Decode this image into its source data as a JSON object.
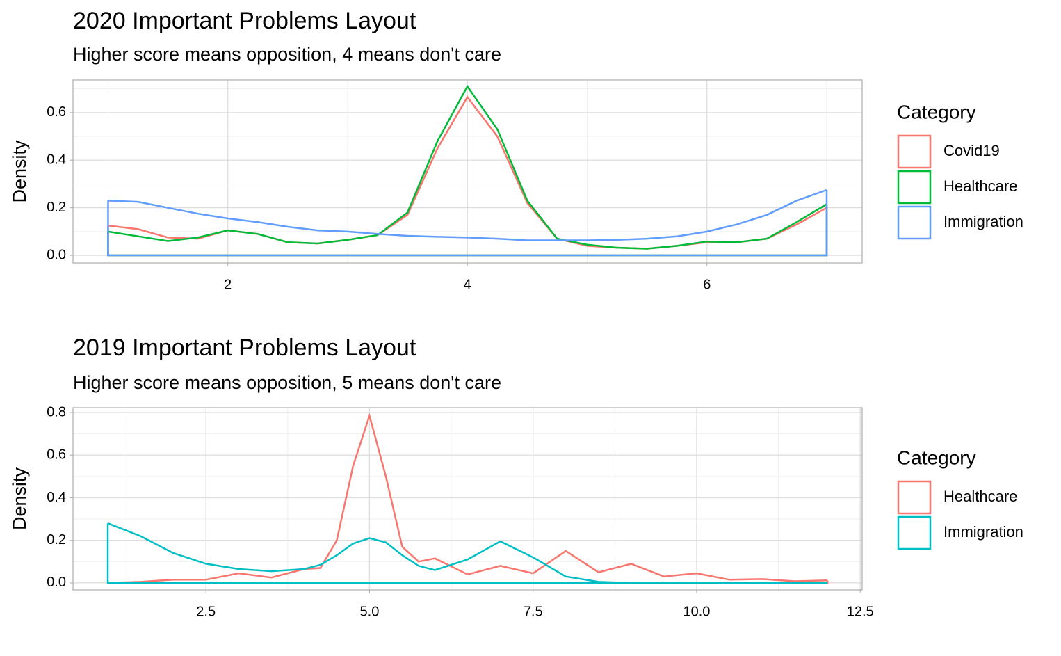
{
  "chart_data": [
    {
      "type": "density",
      "title": "2020 Important Problems Layout",
      "subtitle": "Higher score means opposition, 4 means don't care",
      "y_label": "Density",
      "legend_title": "Category",
      "x": [
        1,
        1.25,
        1.5,
        1.75,
        2,
        2.25,
        2.5,
        2.75,
        3,
        3.25,
        3.5,
        3.75,
        4,
        4.25,
        4.5,
        4.75,
        5,
        5.25,
        5.5,
        5.75,
        6,
        6.25,
        6.5,
        6.75,
        7
      ],
      "series": [
        {
          "name": "Covid19",
          "color": "#F8766D",
          "values": [
            0.125,
            0.11,
            0.075,
            0.07,
            0.105,
            0.09,
            0.055,
            0.05,
            0.065,
            0.085,
            0.17,
            0.45,
            0.665,
            0.5,
            0.22,
            0.07,
            0.04,
            0.032,
            0.028,
            0.04,
            0.055,
            0.055,
            0.07,
            0.13,
            0.2
          ]
        },
        {
          "name": "Healthcare",
          "color": "#00BA38",
          "values": [
            0.1,
            0.08,
            0.06,
            0.075,
            0.105,
            0.09,
            0.055,
            0.05,
            0.065,
            0.085,
            0.18,
            0.48,
            0.71,
            0.53,
            0.23,
            0.07,
            0.045,
            0.032,
            0.028,
            0.04,
            0.058,
            0.055,
            0.07,
            0.14,
            0.215
          ]
        },
        {
          "name": "Immigration",
          "color": "#619CFF",
          "values": [
            0.23,
            0.225,
            0.2,
            0.175,
            0.155,
            0.14,
            0.12,
            0.105,
            0.1,
            0.09,
            0.082,
            0.078,
            0.075,
            0.07,
            0.063,
            0.063,
            0.063,
            0.065,
            0.07,
            0.08,
            0.1,
            0.13,
            0.17,
            0.23,
            0.275
          ]
        }
      ],
      "xlim": [
        0.707,
        7.296
      ],
      "ylim": [
        -0.032,
        0.737
      ],
      "xticks": [
        2,
        4,
        6
      ],
      "yticks": [
        {
          "value": 0,
          "label": "0.0"
        },
        0.2,
        0.4,
        0.6
      ],
      "grid": true
    },
    {
      "type": "density",
      "title": "2019 Important Problems Layout",
      "subtitle": "Higher score means opposition, 5 means don't care",
      "y_label": "Density",
      "legend_title": "Category",
      "x": [
        1,
        1.5,
        2,
        2.5,
        3,
        3.5,
        4,
        4.25,
        4.5,
        4.75,
        5,
        5.25,
        5.5,
        5.75,
        6,
        6.5,
        7,
        7.5,
        8,
        8.5,
        9,
        9.5,
        10,
        10.5,
        11,
        11.5,
        12
      ],
      "series": [
        {
          "name": "Healthcare",
          "color": "#F8766D",
          "values": [
            0,
            0.005,
            0.015,
            0.015,
            0.045,
            0.025,
            0.065,
            0.07,
            0.2,
            0.55,
            0.785,
            0.5,
            0.17,
            0.1,
            0.115,
            0.04,
            0.08,
            0.045,
            0.15,
            0.05,
            0.09,
            0.03,
            0.045,
            0.015,
            0.018,
            0.008,
            0.012
          ]
        },
        {
          "name": "Immigration",
          "color": "#00BFC4",
          "values": [
            0.28,
            0.22,
            0.14,
            0.09,
            0.065,
            0.055,
            0.065,
            0.085,
            0.13,
            0.185,
            0.21,
            0.19,
            0.13,
            0.08,
            0.06,
            0.11,
            0.195,
            0.12,
            0.03,
            0.005,
            0,
            0,
            0,
            0,
            0,
            0,
            0
          ]
        }
      ],
      "xlim": [
        0.468,
        12.53
      ],
      "ylim": [
        -0.033,
        0.823
      ],
      "xticks": [
        2.5,
        {
          "value": 5,
          "label": "5.0"
        },
        7.5,
        {
          "value": 10,
          "label": "10.0"
        },
        12.5
      ],
      "yticks": [
        {
          "value": 0,
          "label": "0.0"
        },
        0.2,
        0.4,
        0.6,
        0.8
      ],
      "grid": true
    }
  ]
}
